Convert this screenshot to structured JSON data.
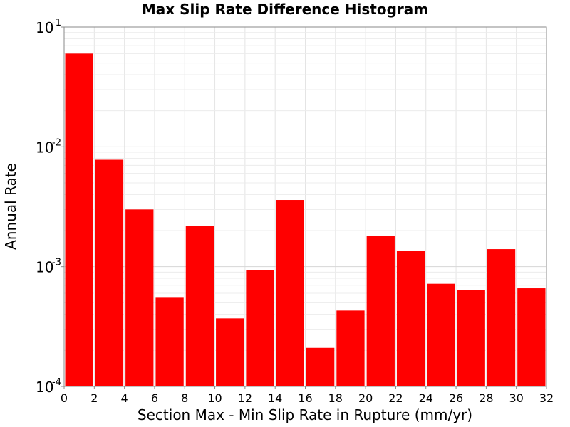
{
  "chart_data": {
    "type": "bar",
    "title": "Max Slip Rate Difference Histogram",
    "xlabel": "Section Max - Min Slip Rate in Rupture (mm/yr)",
    "ylabel": "Annual Rate",
    "xlim": [
      0,
      32
    ],
    "ylim": [
      0.0001,
      0.1
    ],
    "yscale": "log",
    "grid": true,
    "bar_color": "#ff0000",
    "bin_width": 2,
    "bins": [
      {
        "x0": 0,
        "x1": 2,
        "value": 0.06
      },
      {
        "x0": 2,
        "x1": 4,
        "value": 0.0078
      },
      {
        "x0": 4,
        "x1": 6,
        "value": 0.003
      },
      {
        "x0": 6,
        "x1": 8,
        "value": 0.00055
      },
      {
        "x0": 8,
        "x1": 10,
        "value": 0.0022
      },
      {
        "x0": 10,
        "x1": 12,
        "value": 0.00037
      },
      {
        "x0": 12,
        "x1": 14,
        "value": 0.00094
      },
      {
        "x0": 14,
        "x1": 16,
        "value": 0.0036
      },
      {
        "x0": 16,
        "x1": 18,
        "value": 0.00021
      },
      {
        "x0": 18,
        "x1": 20,
        "value": 0.00043
      },
      {
        "x0": 20,
        "x1": 22,
        "value": 0.0018
      },
      {
        "x0": 22,
        "x1": 24,
        "value": 0.00135
      },
      {
        "x0": 24,
        "x1": 26,
        "value": 0.00072
      },
      {
        "x0": 26,
        "x1": 28,
        "value": 0.00064
      },
      {
        "x0": 28,
        "x1": 30,
        "value": 0.0014
      },
      {
        "x0": 30,
        "x1": 32,
        "value": 0.00066
      }
    ],
    "x_ticks": [
      "0",
      "2",
      "4",
      "6",
      "8",
      "10",
      "12",
      "14",
      "16",
      "18",
      "20",
      "22",
      "24",
      "26",
      "28",
      "30",
      "32"
    ],
    "y_ticks": [
      {
        "value": 0.1,
        "base": "10",
        "exp": "-1"
      },
      {
        "value": 0.01,
        "base": "10",
        "exp": "-2"
      },
      {
        "value": 0.001,
        "base": "10",
        "exp": "-3"
      },
      {
        "value": 0.0001,
        "base": "10",
        "exp": "-4"
      }
    ]
  }
}
